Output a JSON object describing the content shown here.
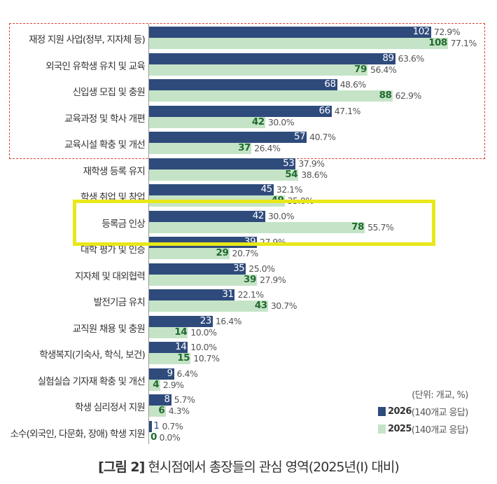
{
  "chart_data": {
    "type": "bar",
    "orientation": "horizontal",
    "title": "[그림 2] 현시점에서 총장들의 관심 영역(2025년(Ⅰ) 대비)",
    "title_prefix": "[그림 2]",
    "title_text": "현시점에서 총장들의 관심 영역(2025년(Ⅰ) 대비)",
    "unit_note": "(단위: 개교, %)",
    "categories": [
      "재정 지원 사업(정부, 지자체 등)",
      "외국인 유학생 유치 및 교육",
      "신입생 모집 및 충원",
      "교육과정 및 학사 개편",
      "교육시설 확충 및 개선",
      "재학생 등록 유지",
      "학생 취업 및 창업",
      "등록금 인상",
      "대학 평가 및 인증",
      "지자체 및 대외협력",
      "발전기금 유치",
      "교직원 채용 및 충원",
      "학생복지(기숙사, 학식, 보건)",
      "실험실습 기자재 확충 및 개선",
      "학생 심리정서 지원",
      "소수(외국인, 다문화, 장애) 학생 지원"
    ],
    "series": [
      {
        "name": "2026",
        "legend_suffix": "(140개교 응답)",
        "color": "#2f4b7c",
        "values": [
          102,
          89,
          68,
          66,
          57,
          53,
          45,
          42,
          39,
          35,
          31,
          23,
          14,
          9,
          8,
          1
        ],
        "percents": [
          "72.9%",
          "63.6%",
          "48.6%",
          "47.1%",
          "40.7%",
          "37.9%",
          "32.1%",
          "30.0%",
          "27.9%",
          "25.0%",
          "22.1%",
          "16.4%",
          "10.0%",
          "6.4%",
          "5.7%",
          "0.7%"
        ]
      },
      {
        "name": "2025",
        "legend_suffix": "(140개교 응답)",
        "color": "#c5e4c7",
        "values": [
          108,
          79,
          88,
          42,
          37,
          54,
          49,
          78,
          29,
          39,
          43,
          14,
          15,
          4,
          6,
          0
        ],
        "percents": [
          "77.1%",
          "56.4%",
          "62.9%",
          "30.0%",
          "26.4%",
          "38.6%",
          "35.0%",
          "55.7%",
          "20.7%",
          "27.9%",
          "30.7%",
          "10.0%",
          "10.7%",
          "2.9%",
          "4.3%",
          "0.0%"
        ]
      }
    ],
    "highlight_red_dashed": [
      0,
      1,
      2,
      3,
      4
    ],
    "highlight_yellow": [
      7
    ]
  }
}
